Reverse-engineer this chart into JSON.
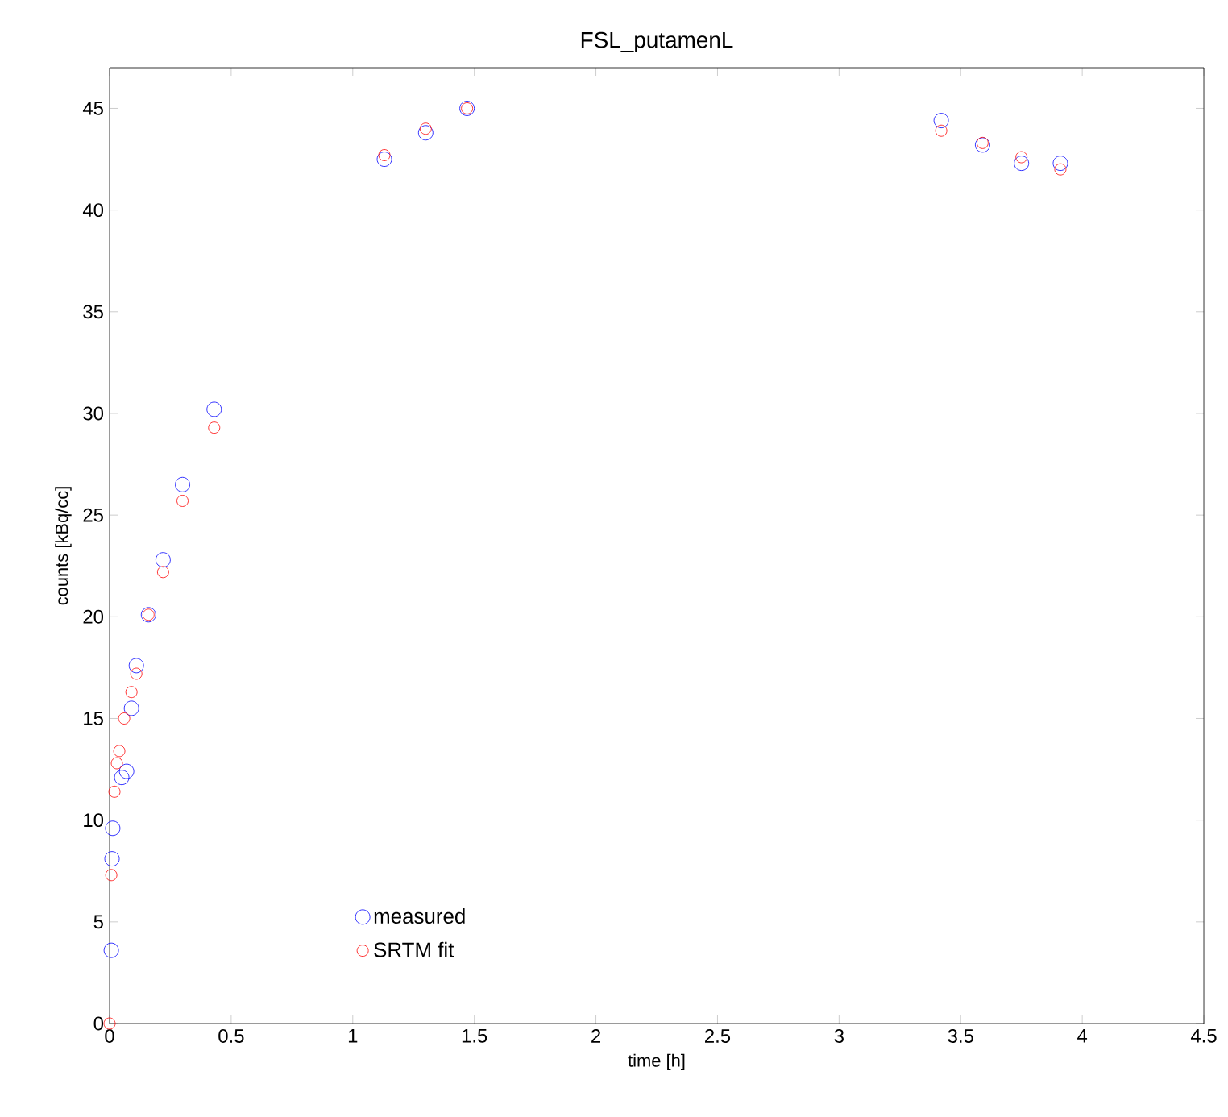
{
  "chart_data": {
    "type": "scatter",
    "title": "FSL_putamenL",
    "xlabel": "time [h]",
    "ylabel": "counts [kBq/cc]",
    "xlim": [
      0,
      4.5
    ],
    "ylim": [
      0,
      47
    ],
    "xticks": [
      0,
      0.5,
      1,
      1.5,
      2,
      2.5,
      3,
      3.5,
      4,
      4.5
    ],
    "yticks": [
      0,
      5,
      10,
      15,
      20,
      25,
      30,
      35,
      40,
      45
    ],
    "marker": "circle",
    "legend": "bottom left",
    "series": [
      {
        "name": "measured",
        "color": "#0000ff",
        "x": [
          0.007,
          0.01,
          0.013,
          0.05,
          0.07,
          0.09,
          0.11,
          0.16,
          0.22,
          0.3,
          0.43,
          1.13,
          1.3,
          1.47,
          3.42,
          3.59,
          3.75,
          3.91
        ],
        "values": [
          3.6,
          8.1,
          9.6,
          12.1,
          12.4,
          15.5,
          17.6,
          20.1,
          22.8,
          26.5,
          30.2,
          42.5,
          43.8,
          45.0,
          44.4,
          43.2,
          42.3,
          42.3
        ]
      },
      {
        "name": "SRTM fit",
        "color": "#ff0000",
        "x": [
          0,
          0.007,
          0.02,
          0.03,
          0.04,
          0.06,
          0.09,
          0.11,
          0.16,
          0.22,
          0.3,
          0.43,
          1.13,
          1.3,
          1.47,
          3.42,
          3.59,
          3.75,
          3.91
        ],
        "values": [
          0,
          7.3,
          11.4,
          12.8,
          13.4,
          15.0,
          16.3,
          17.2,
          20.1,
          22.2,
          25.7,
          29.3,
          42.7,
          44.0,
          45.0,
          43.9,
          43.3,
          42.6,
          42.0
        ]
      }
    ]
  }
}
